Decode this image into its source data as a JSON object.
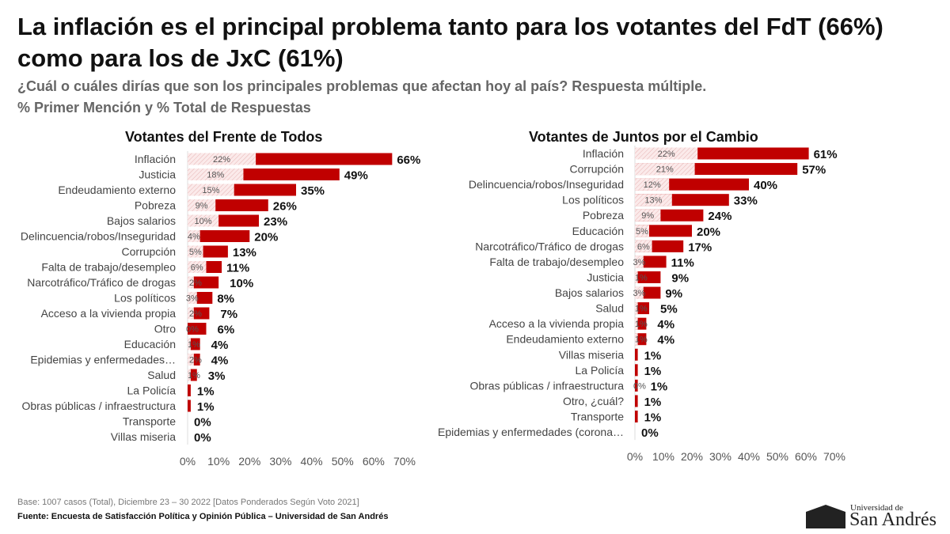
{
  "title": "La inflación es el principal problema tanto para los votantes del FdT (66%) como para los de JxC (61%)",
  "subtitle1": "¿Cuál o cuáles dirías que son los principales problemas que afectan hoy al país? Respuesta múltiple.",
  "subtitle2": "% Primer Mención y % Total de Respuestas",
  "footer": {
    "base": "Base: 1007 casos (Total), Diciembre 23 – 30 2022 [Datos Ponderados Según Voto 2021]",
    "source": "Fuente: Encuesta de Satisfacción Política y Opinión Pública – Universidad de San Andrés"
  },
  "logo": {
    "top": "Universidad de",
    "name": "SanAndrés"
  },
  "colors": {
    "total": "#c00000",
    "first": "#f4d9d9"
  },
  "chart_data": [
    {
      "type": "bar",
      "title": "Votantes del Frente de Todos",
      "xlim": [
        0,
        70
      ],
      "ticks": [
        "0%",
        "10%",
        "20%",
        "30%",
        "40%",
        "50%",
        "60%",
        "70%"
      ],
      "categories": [
        "Inflación",
        "Justicia",
        "Endeudamiento externo",
        "Pobreza",
        "Bajos salarios",
        "Delincuencia/robos/Inseguridad",
        "Corrupción",
        "Falta de trabajo/desempleo",
        "Narcotráfico/Tráfico de drogas",
        "Los políticos",
        "Acceso a la vivienda propia",
        "Otro",
        "Educación",
        "Epidemias y enfermedades…",
        "Salud",
        "La Policía",
        "Obras públicas / infraestructura",
        "Transporte",
        "Villas miseria"
      ],
      "series": [
        {
          "name": "% Primer Mención",
          "values": [
            22,
            18,
            15,
            9,
            10,
            4,
            5,
            6,
            2,
            3,
            2,
            0,
            1,
            2,
            1,
            null,
            null,
            null,
            null
          ]
        },
        {
          "name": "% Total de Respuestas",
          "values": [
            66,
            49,
            35,
            26,
            23,
            20,
            13,
            11,
            10,
            8,
            7,
            6,
            4,
            4,
            3,
            1,
            1,
            0,
            0
          ]
        }
      ]
    },
    {
      "type": "bar",
      "title": "Votantes de Juntos por el Cambio",
      "xlim": [
        0,
        70
      ],
      "ticks": [
        "0%",
        "10%",
        "20%",
        "30%",
        "40%",
        "50%",
        "60%",
        "70%"
      ],
      "categories": [
        "Inflación",
        "Corrupción",
        "Delincuencia/robos/Inseguridad",
        "Los políticos",
        "Pobreza",
        "Educación",
        "Narcotráfico/Tráfico de drogas",
        "Falta de trabajo/desempleo",
        "Justicia",
        "Bajos salarios",
        "Salud",
        "Acceso a la vivienda propia",
        "Endeudamiento externo",
        "Villas miseria",
        "La Policía",
        "Obras públicas / infraestructura",
        "Otro, ¿cuál?",
        "Transporte",
        "Epidemias y enfermedades (corona…"
      ],
      "series": [
        {
          "name": "% Primer Mención",
          "values": [
            22,
            21,
            12,
            13,
            9,
            5,
            6,
            3,
            1,
            3,
            1,
            1,
            1,
            null,
            null,
            0,
            null,
            null,
            null
          ]
        },
        {
          "name": "% Total de Respuestas",
          "values": [
            61,
            57,
            40,
            33,
            24,
            20,
            17,
            11,
            9,
            9,
            5,
            4,
            4,
            1,
            1,
            1,
            1,
            1,
            0
          ]
        }
      ]
    }
  ]
}
